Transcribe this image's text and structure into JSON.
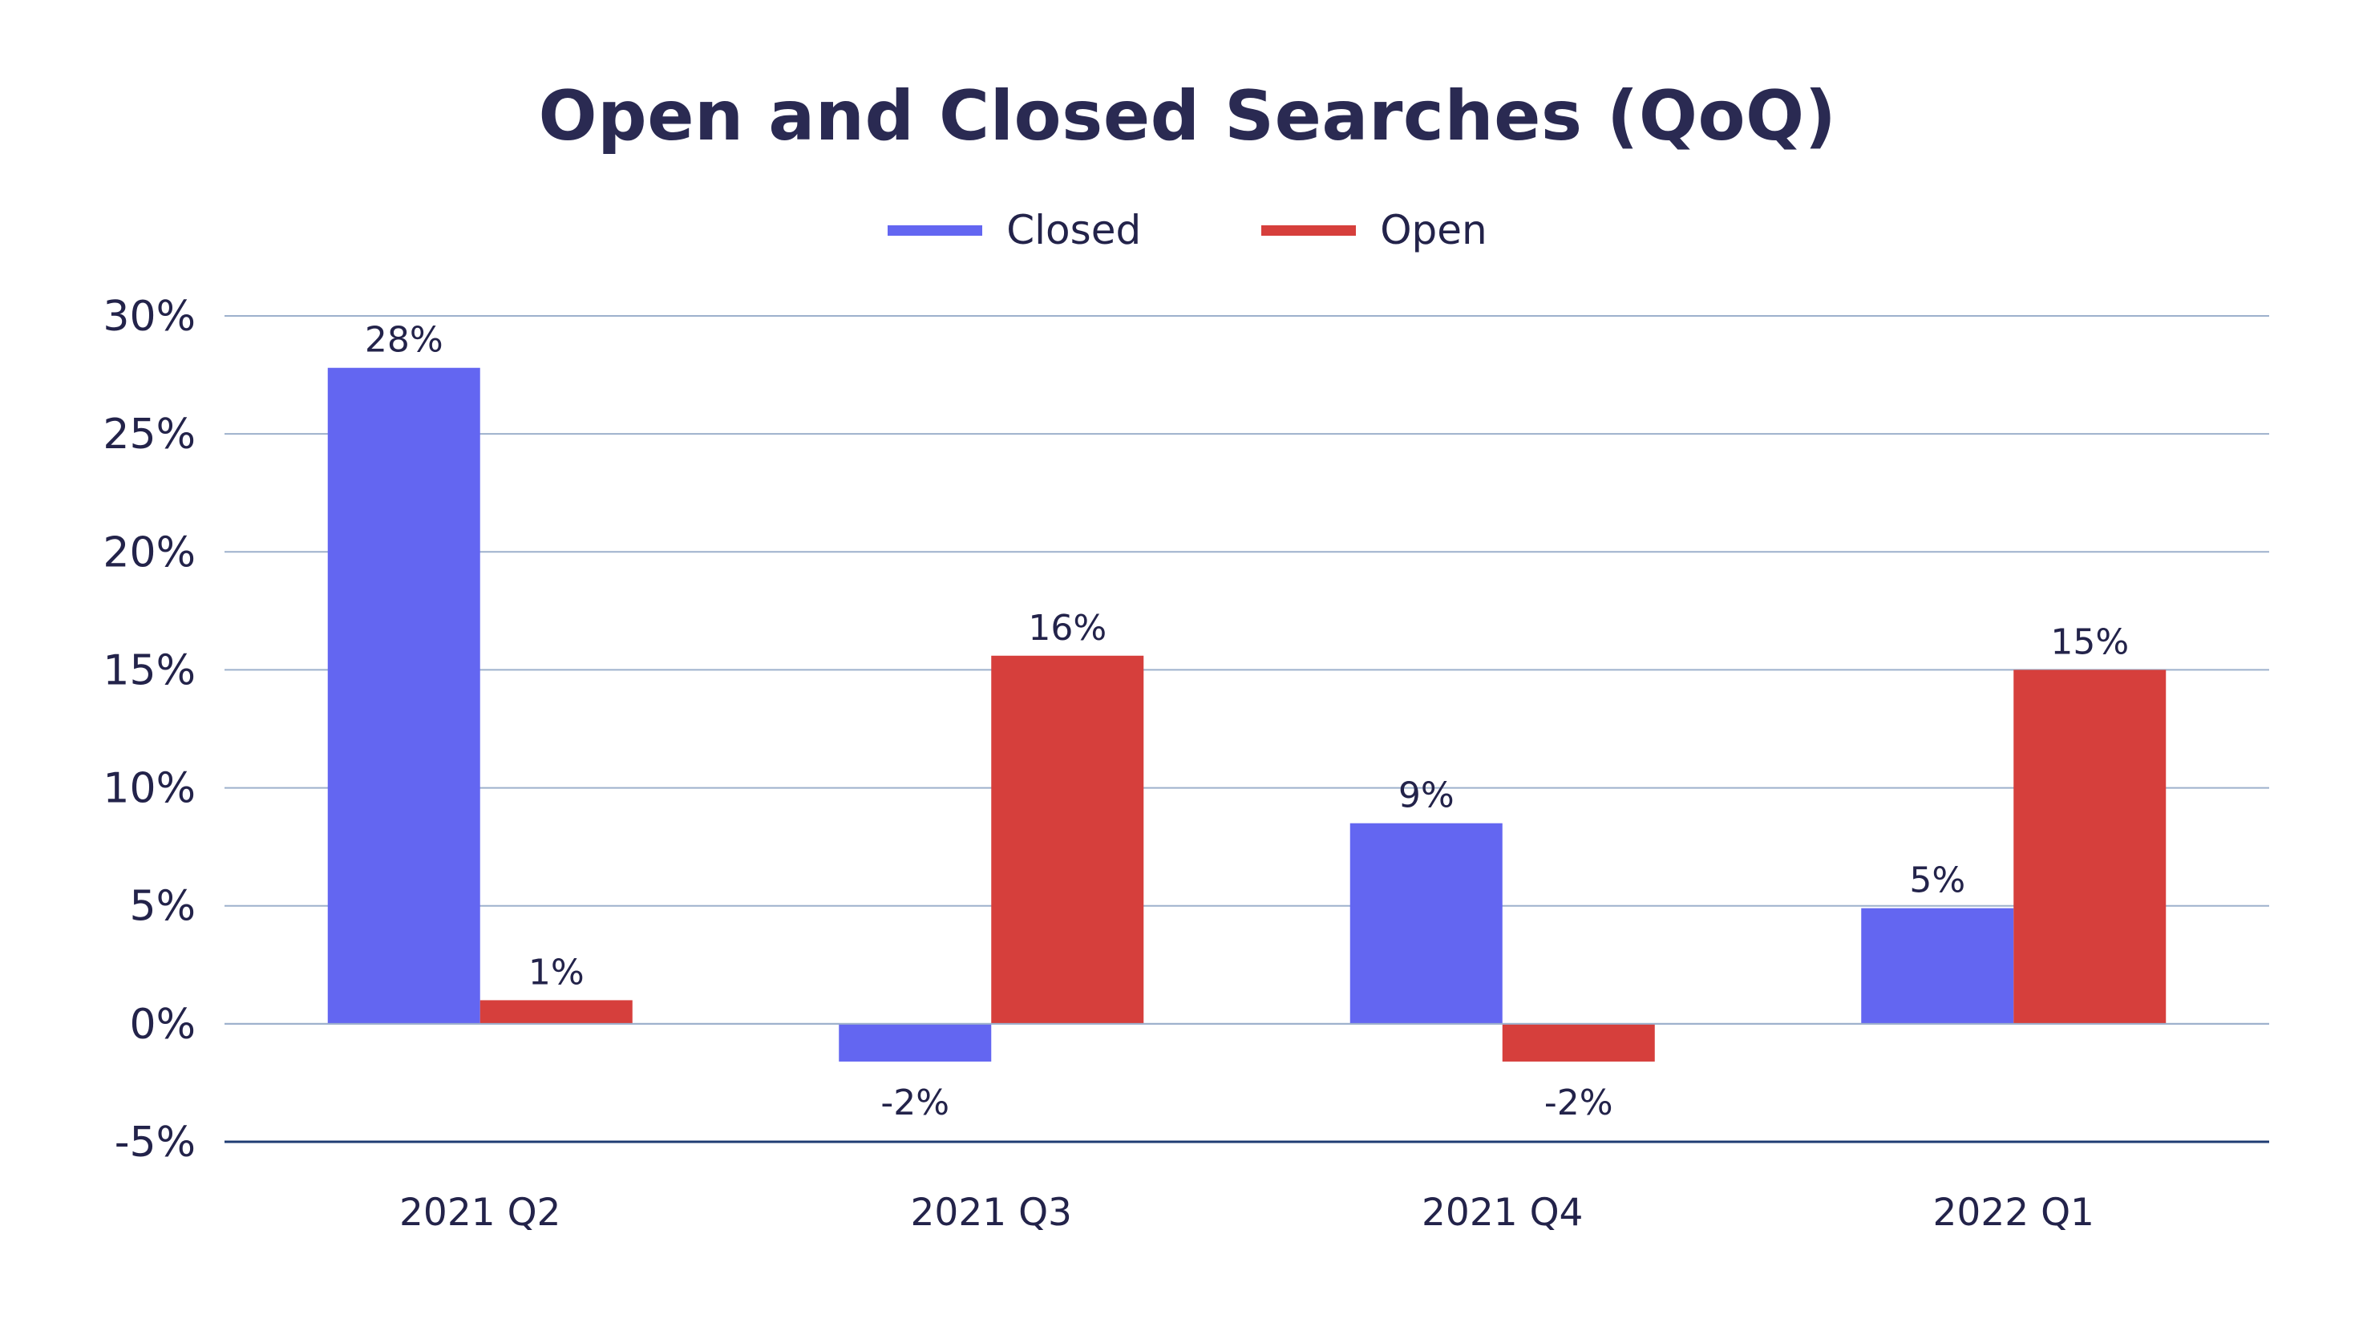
{
  "chart_data": {
    "type": "bar",
    "title": "Open and Closed Searches (QoQ)",
    "categories": [
      "2021 Q2",
      "2021 Q3",
      "2021 Q4",
      "2022 Q1"
    ],
    "series": [
      {
        "name": "Closed",
        "color": "#6366f1",
        "values": [
          27.8,
          -1.6,
          8.5,
          4.9
        ],
        "labels": [
          "28%",
          "-2%",
          "9%",
          "5%"
        ]
      },
      {
        "name": "Open",
        "color": "#d63f3c",
        "values": [
          1.0,
          15.6,
          -1.6,
          15.0
        ],
        "labels": [
          "1%",
          "16%",
          "-2%",
          "15%"
        ]
      }
    ],
    "ylim": [
      -5,
      30
    ],
    "yticks": [
      30,
      25,
      20,
      15,
      10,
      5,
      0,
      -5
    ],
    "ytick_labels": [
      "30%",
      "25%",
      "20%",
      "15%",
      "10%",
      "5%",
      "0%",
      "-5%"
    ],
    "xlabel": "",
    "ylabel": "",
    "grid": true,
    "legend_position": "top-center",
    "grid_color": "#9db0cc",
    "axis_color": "#1f3c73"
  }
}
